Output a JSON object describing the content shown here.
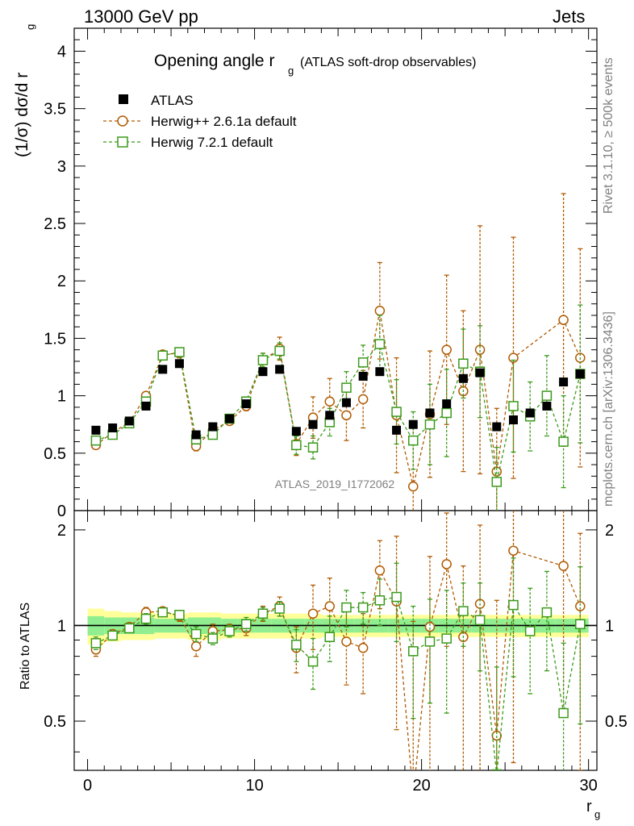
{
  "header": {
    "left": "13000 GeV pp",
    "right": "Jets"
  },
  "side_text": {
    "rivet": "Rivet 3.1.10, ≥ 500k events",
    "mcplots": "mcplots.cern.ch [arXiv:1306.3436]"
  },
  "colors": {
    "atlas": "#000000",
    "herwigpp": "#b05a00",
    "herwig7": "#3a9a1a",
    "band_inner": "#90ee90",
    "band_outer": "#ffff99"
  },
  "chart_data": {
    "type": "scatter",
    "title_main": "Opening angle r",
    "title_sub": "g",
    "title_rest": "(ATLAS soft-drop observables)",
    "analysis_label": "ATLAS_2019_I1772062",
    "xlabel": "r",
    "xlabel_sub": "g",
    "ylabel": "(1/σ) dσ/d r",
    "ylabel_sub": "g",
    "ratio_ylabel": "Ratio to ATLAS",
    "xlim": [
      -0.8,
      30.5
    ],
    "ylim": [
      0,
      4.2
    ],
    "ratio_ylim": [
      0.35,
      2.3
    ],
    "x_ticks": [
      0,
      10,
      20,
      30
    ],
    "y_ticks": [
      0.5,
      1,
      1.5,
      2,
      2.5,
      3,
      3.5,
      4
    ],
    "y_tick_labels": [
      "0.5",
      "1",
      "1.5",
      "2",
      "2.5",
      "3",
      "3.5",
      "4"
    ],
    "y_zero_label": "0",
    "ratio_ticks": [
      0.5,
      1,
      2
    ],
    "ratio_tick_labels": [
      "0.5",
      "1",
      "2"
    ],
    "x": [
      0.5,
      1.5,
      2.5,
      3.5,
      4.5,
      5.5,
      6.5,
      7.5,
      8.5,
      9.5,
      10.5,
      11.5,
      12.5,
      13.5,
      14.5,
      15.5,
      16.5,
      17.5,
      18.5,
      19.5,
      20.5,
      21.5,
      22.5,
      23.5,
      24.5,
      25.5,
      26.5,
      27.5,
      28.5,
      29.5
    ],
    "series": [
      {
        "name": "ATLAS",
        "style": "data",
        "values": [
          0.7,
          0.72,
          0.78,
          0.91,
          1.23,
          1.28,
          0.66,
          0.73,
          0.8,
          0.93,
          1.21,
          1.23,
          0.69,
          0.75,
          0.83,
          0.94,
          1.17,
          1.21,
          0.7,
          0.75,
          0.85,
          0.93,
          1.15,
          1.2,
          0.73,
          0.79,
          0.85,
          0.91,
          1.12,
          1.19
        ]
      },
      {
        "name": "Herwig++ 2.6.1a default",
        "style": "circle",
        "values": [
          0.57,
          0.68,
          0.77,
          1.0,
          1.36,
          1.37,
          0.56,
          0.7,
          0.78,
          0.91,
          1.31,
          1.41,
          0.58,
          0.81,
          0.95,
          0.83,
          0.97,
          1.74,
          0.83,
          0.21,
          0.84,
          1.4,
          1.04,
          1.4,
          0.34,
          1.33,
          null,
          null,
          1.66,
          1.33
        ],
        "errors": [
          0.03,
          0.02,
          0.02,
          0.03,
          0.03,
          0.04,
          0.04,
          0.03,
          0.03,
          0.04,
          0.06,
          0.1,
          0.1,
          0.18,
          0.2,
          0.22,
          0.25,
          0.42,
          0.5,
          0.55,
          0.55,
          0.65,
          0.7,
          1.08,
          0.55,
          1.05,
          null,
          null,
          1.1,
          0.95
        ],
        "ratio": [
          0.84,
          0.94,
          0.99,
          1.1,
          1.11,
          1.07,
          0.86,
          0.96,
          0.97,
          0.98,
          1.09,
          1.15,
          0.85,
          1.09,
          1.15,
          0.89,
          0.85,
          1.49,
          1.19,
          0.29,
          0.99,
          1.56,
          0.92,
          1.17,
          0.45,
          1.72,
          null,
          null,
          1.54,
          1.15
        ],
        "ratio_errors": [
          0.04,
          0.03,
          0.03,
          0.04,
          0.03,
          0.04,
          0.06,
          0.05,
          0.04,
          0.05,
          0.06,
          0.08,
          0.14,
          0.25,
          0.26,
          0.24,
          0.24,
          0.36,
          0.72,
          0.74,
          0.66,
          0.7,
          0.62,
          0.9,
          0.75,
          1.35,
          null,
          null,
          1.0,
          0.8
        ]
      },
      {
        "name": "Herwig 7.2.1 default",
        "style": "square",
        "values": [
          0.61,
          0.66,
          0.76,
          0.95,
          1.35,
          1.38,
          0.62,
          0.66,
          0.8,
          0.95,
          1.31,
          1.39,
          0.57,
          0.55,
          0.77,
          1.07,
          1.29,
          1.45,
          0.86,
          0.61,
          0.75,
          0.85,
          1.28,
          1.21,
          0.25,
          0.91,
          0.82,
          1.0,
          0.6,
          1.19
        ],
        "errors": [
          0.03,
          0.02,
          0.02,
          0.03,
          0.03,
          0.03,
          0.04,
          0.03,
          0.03,
          0.04,
          0.06,
          0.07,
          0.08,
          0.1,
          0.12,
          0.14,
          0.15,
          0.25,
          0.28,
          0.25,
          0.35,
          0.38,
          0.3,
          0.4,
          0.3,
          0.4,
          0.3,
          0.35,
          0.4,
          0.6
        ],
        "ratio": [
          0.88,
          0.93,
          0.98,
          1.05,
          1.1,
          1.08,
          0.94,
          0.91,
          0.96,
          1.01,
          1.09,
          1.13,
          0.87,
          0.77,
          0.92,
          1.14,
          1.14,
          1.2,
          1.23,
          0.83,
          0.89,
          0.91,
          1.11,
          1.04,
          0.34,
          1.16,
          0.96,
          1.1,
          0.53,
          1.01
        ],
        "ratio_errors": [
          0.04,
          0.03,
          0.03,
          0.04,
          0.03,
          0.03,
          0.05,
          0.04,
          0.04,
          0.05,
          0.05,
          0.06,
          0.1,
          0.14,
          0.15,
          0.15,
          0.13,
          0.2,
          0.34,
          0.32,
          0.32,
          0.38,
          0.25,
          0.32,
          0.4,
          0.47,
          0.35,
          0.38,
          0.35,
          0.52
        ]
      }
    ],
    "data_band_inner": [
      0.07,
      0.06,
      0.06,
      0.06,
      0.05,
      0.05,
      0.06,
      0.06,
      0.05,
      0.05,
      0.05,
      0.05,
      0.05,
      0.05,
      0.05,
      0.05,
      0.05,
      0.05,
      0.05,
      0.05,
      0.05,
      0.05,
      0.05,
      0.05,
      0.05,
      0.05,
      0.05,
      0.05,
      0.05,
      0.05
    ],
    "data_band_outer": [
      0.13,
      0.11,
      0.1,
      0.1,
      0.09,
      0.09,
      0.1,
      0.1,
      0.09,
      0.09,
      0.09,
      0.09,
      0.09,
      0.09,
      0.08,
      0.08,
      0.08,
      0.08,
      0.08,
      0.08,
      0.08,
      0.08,
      0.08,
      0.08,
      0.08,
      0.08,
      0.08,
      0.08,
      0.08,
      0.08
    ]
  }
}
